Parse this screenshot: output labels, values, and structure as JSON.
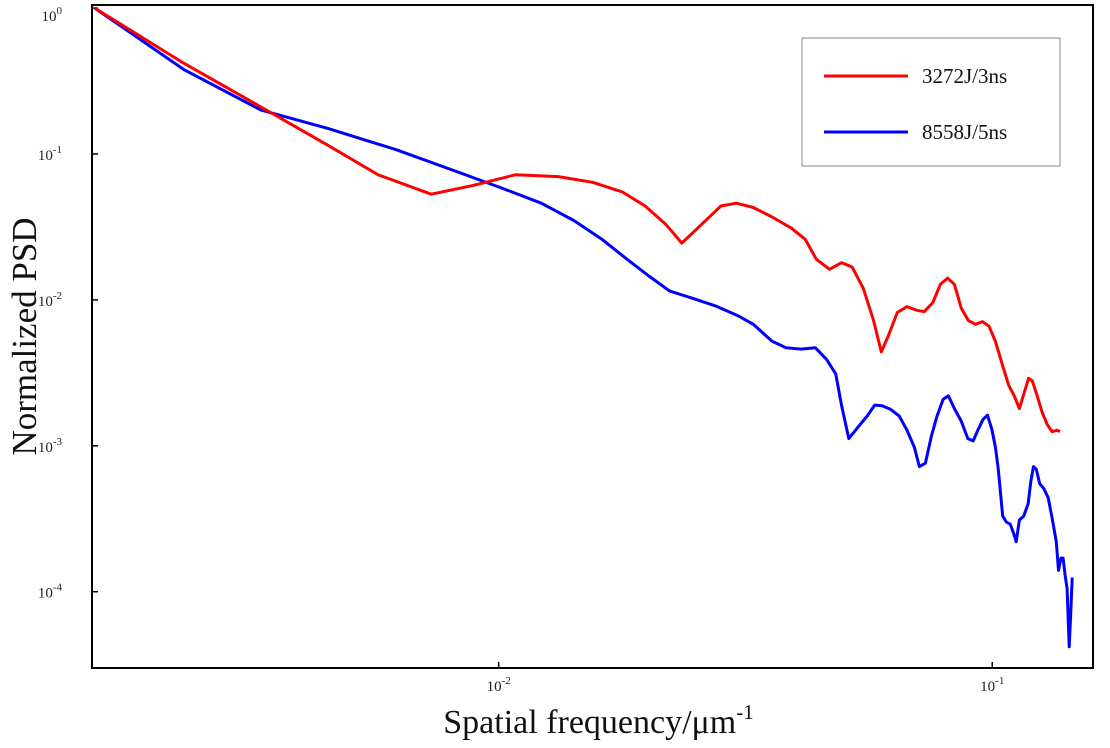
{
  "chart_data": {
    "type": "line",
    "xlabel": "Spatial frequency/μm",
    "xlabel_sup": "-1",
    "ylabel": "Normalized PSD",
    "x_scale": "log",
    "y_scale": "log",
    "xlim": [
      0.0015,
      0.16
    ],
    "ylim": [
      3e-05,
      1.05
    ],
    "x_ticks": [
      {
        "value": 0.01,
        "base": "10",
        "exp": "-2"
      },
      {
        "value": 0.1,
        "base": "10",
        "exp": "-1"
      }
    ],
    "y_ticks": [
      {
        "value": 1,
        "base": "10",
        "exp": "0"
      },
      {
        "value": 0.1,
        "base": "10",
        "exp": "-1"
      },
      {
        "value": 0.01,
        "base": "10",
        "exp": "-2"
      },
      {
        "value": 0.001,
        "base": "10",
        "exp": "-3"
      },
      {
        "value": 0.0001,
        "base": "10",
        "exp": "-4"
      }
    ],
    "grid": false,
    "legend_position": "top-right",
    "series": [
      {
        "name": "3272J/3ns",
        "color": "#ff0000",
        "points": [
          [
            0.00152,
            1.0
          ],
          [
            0.0023,
            0.42
          ],
          [
            0.0033,
            0.21
          ],
          [
            0.0045,
            0.115
          ],
          [
            0.0057,
            0.072
          ],
          [
            0.0073,
            0.053
          ],
          [
            0.0089,
            0.061
          ],
          [
            0.0108,
            0.072
          ],
          [
            0.0132,
            0.07
          ],
          [
            0.0155,
            0.064
          ],
          [
            0.0178,
            0.055
          ],
          [
            0.0198,
            0.044
          ],
          [
            0.0218,
            0.033
          ],
          [
            0.0235,
            0.0245
          ],
          [
            0.0258,
            0.033
          ],
          [
            0.0282,
            0.044
          ],
          [
            0.0303,
            0.046
          ],
          [
            0.0328,
            0.043
          ],
          [
            0.0358,
            0.037
          ],
          [
            0.0392,
            0.031
          ],
          [
            0.0418,
            0.026
          ],
          [
            0.044,
            0.019
          ],
          [
            0.0468,
            0.0162
          ],
          [
            0.0495,
            0.018
          ],
          [
            0.052,
            0.0168
          ],
          [
            0.0548,
            0.012
          ],
          [
            0.0575,
            0.0072
          ],
          [
            0.0596,
            0.0044
          ],
          [
            0.0615,
            0.0056
          ],
          [
            0.0642,
            0.0082
          ],
          [
            0.0672,
            0.009
          ],
          [
            0.0702,
            0.0085
          ],
          [
            0.0728,
            0.0083
          ],
          [
            0.0758,
            0.0096
          ],
          [
            0.0785,
            0.0128
          ],
          [
            0.0812,
            0.0141
          ],
          [
            0.0838,
            0.0128
          ],
          [
            0.0865,
            0.0088
          ],
          [
            0.0895,
            0.0072
          ],
          [
            0.0925,
            0.0068
          ],
          [
            0.0955,
            0.0071
          ],
          [
            0.0985,
            0.0066
          ],
          [
            0.1015,
            0.0052
          ],
          [
            0.1048,
            0.0036
          ],
          [
            0.108,
            0.0026
          ],
          [
            0.1108,
            0.0022
          ],
          [
            0.1135,
            0.0018
          ],
          [
            0.116,
            0.0023
          ],
          [
            0.1185,
            0.0029
          ],
          [
            0.1205,
            0.0028
          ],
          [
            0.1228,
            0.0023
          ],
          [
            0.1262,
            0.0017
          ],
          [
            0.1292,
            0.0014
          ],
          [
            0.1322,
            0.00125
          ],
          [
            0.1352,
            0.00128
          ],
          [
            0.1372,
            0.00125
          ]
        ]
      },
      {
        "name": "8558J/5ns",
        "color": "#0000ff",
        "points": [
          [
            0.00152,
            1.0
          ],
          [
            0.0023,
            0.38
          ],
          [
            0.0033,
            0.2
          ],
          [
            0.0045,
            0.15
          ],
          [
            0.0062,
            0.107
          ],
          [
            0.0082,
            0.076
          ],
          [
            0.0102,
            0.058
          ],
          [
            0.0122,
            0.046
          ],
          [
            0.0142,
            0.035
          ],
          [
            0.0162,
            0.026
          ],
          [
            0.0182,
            0.019
          ],
          [
            0.0202,
            0.0145
          ],
          [
            0.0222,
            0.0115
          ],
          [
            0.0248,
            0.0102
          ],
          [
            0.0275,
            0.0091
          ],
          [
            0.0305,
            0.0078
          ],
          [
            0.0328,
            0.0068
          ],
          [
            0.0358,
            0.0052
          ],
          [
            0.0382,
            0.0047
          ],
          [
            0.041,
            0.0046
          ],
          [
            0.0438,
            0.0047
          ],
          [
            0.0462,
            0.0039
          ],
          [
            0.0482,
            0.0031
          ],
          [
            0.0495,
            0.0019
          ],
          [
            0.0512,
            0.00112
          ],
          [
            0.0538,
            0.00138
          ],
          [
            0.0558,
            0.0016
          ],
          [
            0.0578,
            0.0019
          ],
          [
            0.0598,
            0.00188
          ],
          [
            0.0622,
            0.00178
          ],
          [
            0.0648,
            0.0016
          ],
          [
            0.0672,
            0.00128
          ],
          [
            0.0695,
            0.00098
          ],
          [
            0.0712,
            0.00072
          ],
          [
            0.0732,
            0.00076
          ],
          [
            0.0752,
            0.00115
          ],
          [
            0.0772,
            0.00158
          ],
          [
            0.0795,
            0.00208
          ],
          [
            0.0815,
            0.0022
          ],
          [
            0.0838,
            0.0018
          ],
          [
            0.0865,
            0.00148
          ],
          [
            0.0892,
            0.00112
          ],
          [
            0.0915,
            0.00108
          ],
          [
            0.0935,
            0.00128
          ],
          [
            0.0958,
            0.00152
          ],
          [
            0.0978,
            0.00162
          ],
          [
            0.0998,
            0.0013
          ],
          [
            0.1015,
            0.00098
          ],
          [
            0.1028,
            0.0007
          ],
          [
            0.104,
            0.00046
          ],
          [
            0.105,
            0.00033
          ],
          [
            0.1068,
            0.0003
          ],
          [
            0.1088,
            0.00029
          ],
          [
            0.1105,
            0.00025
          ],
          [
            0.1118,
            0.00022
          ],
          [
            0.1135,
            0.00031
          ],
          [
            0.1158,
            0.00033
          ],
          [
            0.1182,
            0.0004
          ],
          [
            0.1198,
            0.00058
          ],
          [
            0.1212,
            0.00072
          ],
          [
            0.1228,
            0.00069
          ],
          [
            0.1248,
            0.00055
          ],
          [
            0.1272,
            0.00051
          ],
          [
            0.1298,
            0.00044
          ],
          [
            0.1322,
            0.00032
          ],
          [
            0.1348,
            0.00022
          ],
          [
            0.1362,
            0.00014
          ],
          [
            0.1378,
            0.00017
          ],
          [
            0.1392,
            0.00017
          ],
          [
            0.1405,
            0.00013
          ],
          [
            0.1418,
            0.000105
          ],
          [
            0.1432,
            4.2e-05
          ],
          [
            0.1442,
            7e-05
          ],
          [
            0.1452,
            0.000125
          ]
        ]
      }
    ]
  }
}
